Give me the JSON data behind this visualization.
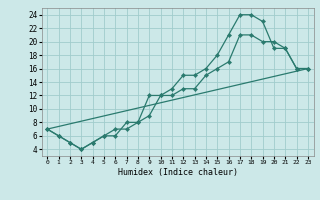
{
  "xlabel": "Humidex (Indice chaleur)",
  "ylabel": "",
  "xlim": [
    -0.5,
    23.5
  ],
  "ylim": [
    3,
    25
  ],
  "yticks": [
    4,
    6,
    8,
    10,
    12,
    14,
    16,
    18,
    20,
    22,
    24
  ],
  "xticks": [
    0,
    1,
    2,
    3,
    4,
    5,
    6,
    7,
    8,
    9,
    10,
    11,
    12,
    13,
    14,
    15,
    16,
    17,
    18,
    19,
    20,
    21,
    22,
    23
  ],
  "bg_color": "#cce8e8",
  "grid_color": "#a0cccc",
  "line_color": "#2a7a6e",
  "line1_x": [
    0,
    1,
    2,
    3,
    4,
    5,
    6,
    7,
    8,
    9,
    10,
    11,
    12,
    13,
    14,
    15,
    16,
    17,
    18,
    19,
    20,
    21,
    22,
    23
  ],
  "line1_y": [
    7,
    6,
    5,
    4,
    5,
    6,
    6,
    8,
    8,
    12,
    12,
    13,
    15,
    15,
    16,
    18,
    21,
    24,
    24,
    23,
    19,
    19,
    16,
    16
  ],
  "line2_x": [
    0,
    1,
    2,
    3,
    4,
    5,
    6,
    7,
    8,
    9,
    10,
    11,
    12,
    13,
    14,
    15,
    16,
    17,
    18,
    19,
    20,
    21,
    22,
    23
  ],
  "line2_y": [
    7,
    6,
    5,
    4,
    5,
    6,
    7,
    7,
    8,
    9,
    12,
    12,
    13,
    13,
    15,
    16,
    17,
    21,
    21,
    20,
    20,
    19,
    16,
    16
  ],
  "line3_x": [
    0,
    23
  ],
  "line3_y": [
    7,
    16
  ]
}
